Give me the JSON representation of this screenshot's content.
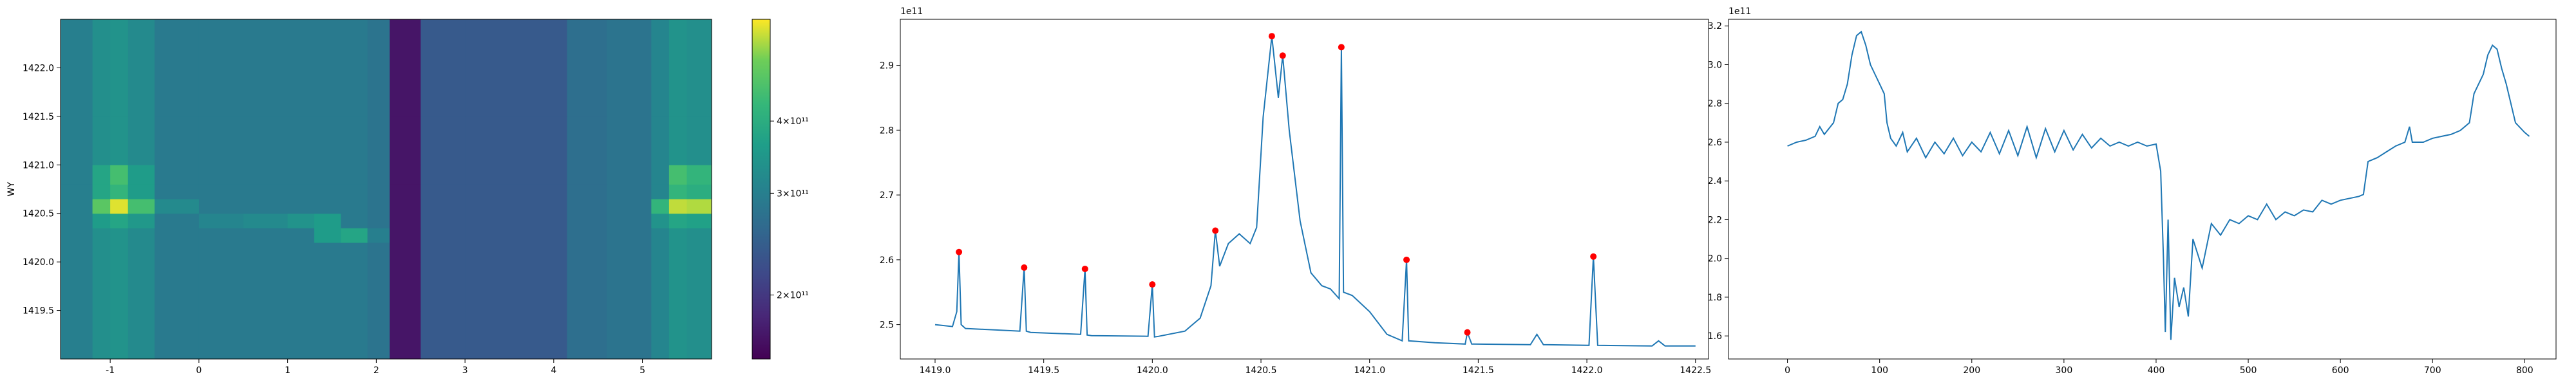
{
  "chart_data": [
    {
      "type": "heatmap",
      "ylabel": "WY",
      "cmap": "viridis",
      "x_edges": [
        -1.56,
        -1.2,
        -1.0,
        -0.8,
        -0.5,
        0,
        0.5,
        1.0,
        1.3,
        1.6,
        1.9,
        2.15,
        2.5,
        3.0,
        3.5,
        4.15,
        4.6,
        5.1,
        5.3,
        5.5,
        5.78
      ],
      "y_edges": [
        1419.0,
        1419.5,
        1420.0,
        1420.2,
        1420.35,
        1420.5,
        1420.65,
        1420.8,
        1421.0,
        1421.5,
        1422.0,
        1422.5
      ],
      "z": [
        [
          300000000000.0,
          330000000000.0,
          340000000000.0,
          320000000000.0,
          290000000000.0,
          290000000000.0,
          290000000000.0,
          290000000000.0,
          290000000000.0,
          290000000000.0,
          280000000000.0,
          170000000000.0,
          240000000000.0,
          240000000000.0,
          240000000000.0,
          270000000000.0,
          280000000000.0,
          310000000000.0,
          340000000000.0,
          330000000000.0
        ],
        [
          300000000000.0,
          330000000000.0,
          340000000000.0,
          320000000000.0,
          290000000000.0,
          290000000000.0,
          290000000000.0,
          290000000000.0,
          290000000000.0,
          290000000000.0,
          280000000000.0,
          170000000000.0,
          240000000000.0,
          240000000000.0,
          240000000000.0,
          270000000000.0,
          280000000000.0,
          310000000000.0,
          340000000000.0,
          330000000000.0
        ],
        [
          300000000000.0,
          330000000000.0,
          340000000000.0,
          320000000000.0,
          290000000000.0,
          290000000000.0,
          290000000000.0,
          290000000000.0,
          290000000000.0,
          290000000000.0,
          280000000000.0,
          170000000000.0,
          240000000000.0,
          240000000000.0,
          240000000000.0,
          270000000000.0,
          280000000000.0,
          310000000000.0,
          340000000000.0,
          330000000000.0
        ],
        [
          300000000000.0,
          330000000000.0,
          340000000000.0,
          320000000000.0,
          290000000000.0,
          290000000000.0,
          290000000000.0,
          290000000000.0,
          360000000000.0,
          380000000000.0,
          300000000000.0,
          170000000000.0,
          240000000000.0,
          240000000000.0,
          240000000000.0,
          270000000000.0,
          280000000000.0,
          310000000000.0,
          340000000000.0,
          330000000000.0
        ],
        [
          300000000000.0,
          360000000000.0,
          380000000000.0,
          350000000000.0,
          290000000000.0,
          310000000000.0,
          320000000000.0,
          340000000000.0,
          360000000000.0,
          290000000000.0,
          280000000000.0,
          170000000000.0,
          240000000000.0,
          240000000000.0,
          240000000000.0,
          270000000000.0,
          280000000000.0,
          340000000000.0,
          380000000000.0,
          370000000000.0
        ],
        [
          300000000000.0,
          480000000000.0,
          580000000000.0,
          450000000000.0,
          320000000000.0,
          290000000000.0,
          290000000000.0,
          290000000000.0,
          290000000000.0,
          290000000000.0,
          280000000000.0,
          170000000000.0,
          240000000000.0,
          240000000000.0,
          240000000000.0,
          270000000000.0,
          280000000000.0,
          420000000000.0,
          560000000000.0,
          550000000000.0
        ],
        [
          300000000000.0,
          380000000000.0,
          420000000000.0,
          360000000000.0,
          290000000000.0,
          290000000000.0,
          290000000000.0,
          290000000000.0,
          290000000000.0,
          290000000000.0,
          280000000000.0,
          170000000000.0,
          240000000000.0,
          240000000000.0,
          240000000000.0,
          270000000000.0,
          280000000000.0,
          310000000000.0,
          420000000000.0,
          400000000000.0
        ],
        [
          300000000000.0,
          380000000000.0,
          450000000000.0,
          360000000000.0,
          290000000000.0,
          290000000000.0,
          290000000000.0,
          290000000000.0,
          290000000000.0,
          290000000000.0,
          280000000000.0,
          170000000000.0,
          240000000000.0,
          240000000000.0,
          240000000000.0,
          270000000000.0,
          280000000000.0,
          310000000000.0,
          450000000000.0,
          420000000000.0
        ],
        [
          300000000000.0,
          330000000000.0,
          340000000000.0,
          320000000000.0,
          290000000000.0,
          290000000000.0,
          290000000000.0,
          290000000000.0,
          290000000000.0,
          290000000000.0,
          280000000000.0,
          170000000000.0,
          240000000000.0,
          240000000000.0,
          240000000000.0,
          270000000000.0,
          280000000000.0,
          310000000000.0,
          340000000000.0,
          330000000000.0
        ],
        [
          300000000000.0,
          330000000000.0,
          340000000000.0,
          320000000000.0,
          290000000000.0,
          290000000000.0,
          290000000000.0,
          290000000000.0,
          290000000000.0,
          290000000000.0,
          280000000000.0,
          170000000000.0,
          240000000000.0,
          240000000000.0,
          240000000000.0,
          270000000000.0,
          280000000000.0,
          310000000000.0,
          340000000000.0,
          330000000000.0
        ],
        [
          300000000000.0,
          330000000000.0,
          340000000000.0,
          320000000000.0,
          290000000000.0,
          290000000000.0,
          290000000000.0,
          290000000000.0,
          290000000000.0,
          290000000000.0,
          280000000000.0,
          170000000000.0,
          240000000000.0,
          240000000000.0,
          240000000000.0,
          270000000000.0,
          280000000000.0,
          310000000000.0,
          340000000000.0,
          330000000000.0
        ]
      ],
      "xlim": [
        -1.56,
        5.78
      ],
      "ylim": [
        1419.0,
        1422.5
      ],
      "xticks": [
        -1,
        0,
        1,
        2,
        3,
        4,
        5
      ],
      "yticks": [
        1419.5,
        {
          "value": 1420,
          "label": "1420.0"
        },
        1420.5,
        {
          "value": 1421,
          "label": "1421.0"
        },
        1421.5,
        {
          "value": 1422,
          "label": "1422.0"
        }
      ],
      "colorbar": {
        "scale": "log",
        "lim": [
          155000000000.0,
          600000000000.0
        ],
        "ticks": [
          {
            "value": 200000000000.0,
            "label": "2×10¹¹"
          },
          {
            "value": 300000000000.0,
            "label": "3×10¹¹"
          },
          {
            "value": 400000000000.0,
            "label": "4×10¹¹"
          }
        ]
      }
    },
    {
      "type": "line",
      "offset_text": "1e11",
      "x": [
        1419.0,
        1419.08,
        1419.1,
        1419.11,
        1419.12,
        1419.14,
        1419.39,
        1419.41,
        1419.42,
        1419.44,
        1419.67,
        1419.69,
        1419.7,
        1419.72,
        1419.98,
        1420.0,
        1420.01,
        1420.03,
        1420.15,
        1420.22,
        1420.27,
        1420.29,
        1420.31,
        1420.35,
        1420.4,
        1420.45,
        1420.48,
        1420.51,
        1420.55,
        1420.58,
        1420.6,
        1420.63,
        1420.68,
        1420.73,
        1420.78,
        1420.82,
        1420.86,
        1420.87,
        1420.88,
        1420.92,
        1421.0,
        1421.08,
        1421.15,
        1421.17,
        1421.18,
        1421.3,
        1421.44,
        1421.45,
        1421.47,
        1421.74,
        1421.77,
        1421.8,
        1422.01,
        1422.03,
        1422.05,
        1422.3,
        1422.33,
        1422.36,
        1422.5
      ],
      "series": [
        {
          "color": "#1f77b4",
          "values": [
            2.5,
            2.497,
            2.52,
            2.612,
            2.5,
            2.494,
            2.49,
            2.588,
            2.49,
            2.488,
            2.485,
            2.586,
            2.484,
            2.483,
            2.482,
            2.562,
            2.481,
            2.482,
            2.49,
            2.51,
            2.56,
            2.645,
            2.59,
            2.625,
            2.64,
            2.625,
            2.65,
            2.82,
            2.945,
            2.85,
            2.915,
            2.8,
            2.66,
            2.58,
            2.56,
            2.555,
            2.54,
            2.928,
            2.55,
            2.545,
            2.52,
            2.485,
            2.475,
            2.6,
            2.475,
            2.472,
            2.47,
            2.488,
            2.47,
            2.469,
            2.485,
            2.469,
            2.468,
            2.605,
            2.468,
            2.467,
            2.475,
            2.467,
            2.467
          ]
        }
      ],
      "markers": {
        "color": "#ff0000",
        "x": [
          1419.11,
          1419.41,
          1419.69,
          1420.0,
          1420.29,
          1420.55,
          1420.6,
          1420.87,
          1421.17,
          1421.45,
          1422.03
        ],
        "values": [
          2.612,
          2.588,
          2.586,
          2.562,
          2.645,
          2.945,
          2.915,
          2.928,
          2.6,
          2.488,
          2.605
        ]
      },
      "xlim": [
        1418.84,
        1422.56
      ],
      "ylim": [
        2.447,
        2.971
      ],
      "xticks": [
        {
          "value": 1419,
          "label": "1419.0"
        },
        1419.5,
        {
          "value": 1420,
          "label": "1420.0"
        },
        1420.5,
        {
          "value": 1421,
          "label": "1421.0"
        },
        1421.5,
        {
          "value": 1422,
          "label": "1422.0"
        },
        1422.5
      ],
      "yticks": [
        2.5,
        2.6,
        2.7,
        2.8,
        2.9
      ]
    },
    {
      "type": "line",
      "offset_text": "1e11",
      "x": [
        0,
        10,
        20,
        30,
        35,
        40,
        50,
        55,
        60,
        65,
        70,
        75,
        80,
        85,
        90,
        95,
        100,
        105,
        108,
        112,
        118,
        125,
        130,
        140,
        150,
        160,
        170,
        180,
        190,
        200,
        210,
        220,
        230,
        240,
        250,
        260,
        270,
        280,
        290,
        300,
        310,
        320,
        330,
        340,
        350,
        360,
        370,
        380,
        390,
        400,
        405,
        408,
        410,
        413,
        416,
        420,
        425,
        430,
        435,
        440,
        450,
        460,
        470,
        480,
        490,
        500,
        510,
        520,
        530,
        540,
        550,
        560,
        570,
        580,
        590,
        600,
        620,
        625,
        630,
        640,
        650,
        660,
        670,
        675,
        678,
        690,
        700,
        710,
        720,
        730,
        740,
        745,
        750,
        755,
        760,
        765,
        770,
        775,
        780,
        790,
        800,
        805
      ],
      "series": [
        {
          "color": "#1f77b4",
          "values": [
            2.58,
            2.6,
            2.61,
            2.63,
            2.68,
            2.64,
            2.7,
            2.8,
            2.82,
            2.9,
            3.05,
            3.15,
            3.17,
            3.1,
            3.0,
            2.95,
            2.9,
            2.85,
            2.7,
            2.62,
            2.58,
            2.65,
            2.55,
            2.62,
            2.52,
            2.6,
            2.54,
            2.62,
            2.53,
            2.6,
            2.55,
            2.65,
            2.54,
            2.66,
            2.53,
            2.68,
            2.52,
            2.67,
            2.55,
            2.66,
            2.56,
            2.64,
            2.57,
            2.62,
            2.58,
            2.6,
            2.58,
            2.6,
            2.58,
            2.59,
            2.45,
            2.0,
            1.62,
            2.2,
            1.58,
            1.9,
            1.75,
            1.85,
            1.7,
            2.1,
            1.95,
            2.18,
            2.12,
            2.2,
            2.18,
            2.22,
            2.2,
            2.28,
            2.2,
            2.24,
            2.22,
            2.25,
            2.24,
            2.3,
            2.28,
            2.3,
            2.32,
            2.33,
            2.5,
            2.52,
            2.55,
            2.58,
            2.6,
            2.68,
            2.6,
            2.6,
            2.62,
            2.63,
            2.64,
            2.66,
            2.7,
            2.85,
            2.9,
            2.95,
            3.05,
            3.1,
            3.08,
            2.98,
            2.9,
            2.7,
            2.65,
            2.63
          ]
        }
      ],
      "xlim": [
        -64,
        834
      ],
      "ylim": [
        1.481,
        3.234
      ],
      "xticks": [
        0,
        100,
        200,
        300,
        400,
        500,
        600,
        700,
        800
      ],
      "yticks": [
        1.6,
        1.8,
        {
          "value": 2,
          "label": "2.0"
        },
        2.2,
        2.4,
        2.6,
        2.8,
        {
          "value": 3,
          "label": "3.0"
        },
        3.2
      ]
    }
  ]
}
